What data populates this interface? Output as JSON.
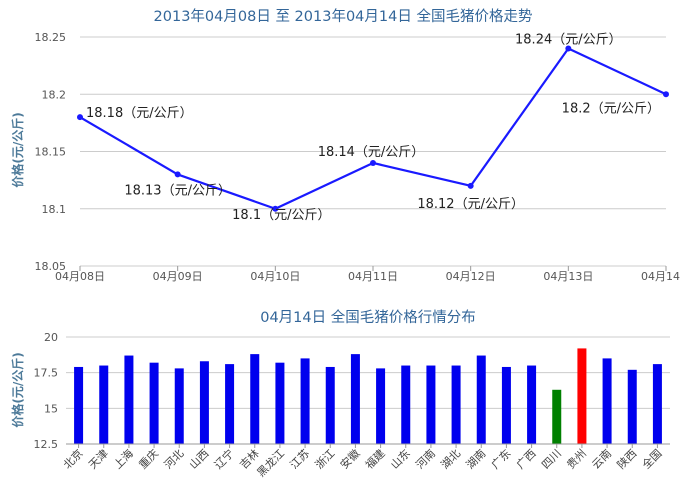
{
  "chart_data": [
    {
      "type": "line",
      "title": "2013年04月08日 至 2013年04月14日 全国毛猪价格走势",
      "ylabel": "价格(元/公斤)",
      "xlabel": "",
      "categories": [
        "04月08日",
        "04月09日",
        "04月10日",
        "04月11日",
        "04月12日",
        "04月13日",
        "04月14日"
      ],
      "tick_labels": [
        "04月08日",
        "04月09日",
        "04月10日",
        "04月11日",
        "04月12日",
        "04月13日",
        "04月14"
      ],
      "values": [
        18.18,
        18.13,
        18.1,
        18.14,
        18.12,
        18.24,
        18.2
      ],
      "data_labels": [
        "18.18（元/公斤）",
        "18.13（元/公斤）",
        "18.1（元/公斤）",
        "18.14（元/公斤）",
        "18.12（元/公斤）",
        "18.24（元/公斤）",
        "18.2（元/公斤）"
      ],
      "ylim": [
        18.05,
        18.25
      ],
      "yticks": [
        18.05,
        18.1,
        18.15,
        18.2,
        18.25
      ],
      "ytick_labels": [
        "18.05",
        "18.1",
        "18.15",
        "18.2",
        "18.25"
      ],
      "grid": true,
      "colors": {
        "line": "#1a1aff",
        "title": "#336699",
        "axis_label": "#4d7a99",
        "grid": "#cccccc"
      }
    },
    {
      "type": "bar",
      "title": "04月14日 全国毛猪价格行情分布",
      "ylabel": "价格(元/公斤)",
      "xlabel": "",
      "categories": [
        "北京",
        "天津",
        "上海",
        "重庆",
        "河北",
        "山西",
        "辽宁",
        "吉林",
        "黑龙江",
        "江苏",
        "浙江",
        "安徽",
        "福建",
        "山东",
        "河南",
        "湖北",
        "湖南",
        "广东",
        "广西",
        "四川",
        "贵州",
        "云南",
        "陕西",
        "全国"
      ],
      "values": [
        17.9,
        18.0,
        18.7,
        18.2,
        17.8,
        18.3,
        18.1,
        18.8,
        18.2,
        18.5,
        17.9,
        18.8,
        17.8,
        18.0,
        18.0,
        18.0,
        18.7,
        17.9,
        18.0,
        16.3,
        19.2,
        18.5,
        17.7,
        18.1
      ],
      "bar_colors": [
        "#0000ee",
        "#0000ee",
        "#0000ee",
        "#0000ee",
        "#0000ee",
        "#0000ee",
        "#0000ee",
        "#0000ee",
        "#0000ee",
        "#0000ee",
        "#0000ee",
        "#0000ee",
        "#0000ee",
        "#0000ee",
        "#0000ee",
        "#0000ee",
        "#0000ee",
        "#0000ee",
        "#0000ee",
        "#008000",
        "#ff0000",
        "#0000ee",
        "#0000ee",
        "#0000ee"
      ],
      "ylim": [
        12.5,
        20
      ],
      "yticks": [
        12.5,
        15,
        17.5,
        20
      ],
      "ytick_labels": [
        "12.5",
        "15",
        "17.5",
        "20"
      ],
      "grid": true,
      "colors": {
        "title": "#336699",
        "axis_label": "#4d7a99",
        "grid": "#cccccc"
      }
    }
  ]
}
